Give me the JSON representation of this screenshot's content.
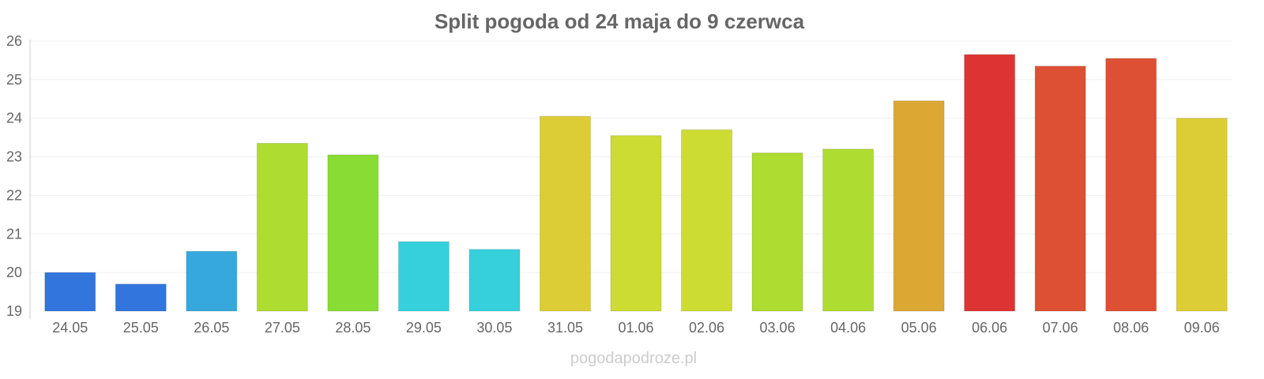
{
  "chart_data": {
    "type": "bar",
    "title": "Split pogoda od 24 maja do 9 czerwca",
    "xlabel": "",
    "ylabel": "",
    "categories": [
      "24.05",
      "25.05",
      "26.05",
      "27.05",
      "28.05",
      "29.05",
      "30.05",
      "31.05",
      "01.06",
      "02.06",
      "03.06",
      "04.06",
      "05.06",
      "06.06",
      "07.06",
      "08.06",
      "09.06"
    ],
    "values": [
      20.0,
      19.7,
      20.55,
      23.35,
      23.05,
      20.8,
      20.6,
      24.05,
      23.55,
      23.7,
      23.1,
      23.2,
      24.45,
      25.65,
      25.35,
      25.55,
      24.0
    ],
    "colors": [
      "#3275dd",
      "#3275dd",
      "#36a8dd",
      "#aedc31",
      "#88dc33",
      "#36d0dc",
      "#36d0dc",
      "#dccd36",
      "#ccdc33",
      "#ccdc33",
      "#aedc31",
      "#aedc31",
      "#dca733",
      "#dd3333",
      "#dd5033",
      "#dd5033",
      "#dccd36"
    ],
    "ylim": [
      19,
      26
    ],
    "yticks": [
      19,
      20,
      21,
      22,
      23,
      24,
      25,
      26
    ],
    "grid": true,
    "legend": "none"
  },
  "watermark": "pogodapodroze.pl"
}
